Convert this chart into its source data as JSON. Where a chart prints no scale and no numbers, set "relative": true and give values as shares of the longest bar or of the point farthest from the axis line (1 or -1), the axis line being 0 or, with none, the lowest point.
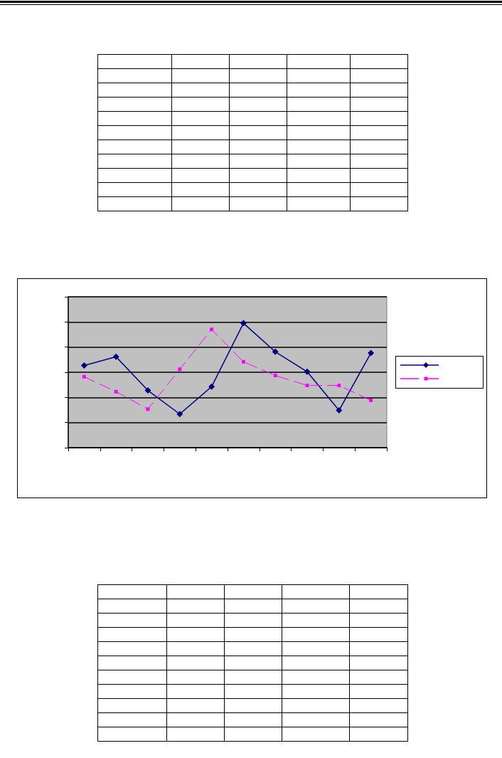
{
  "chart_data": {
    "type": "line",
    "relative": true,
    "grid": "y",
    "categories": [
      null,
      null,
      null,
      null,
      null,
      null,
      null,
      null,
      null,
      null
    ],
    "series": [
      {
        "color": "#000080",
        "marker": "diamond",
        "line_style": "solid",
        "values": [
          0.66,
          0.73,
          0.46,
          0.27,
          0.49,
          1,
          0.77,
          0.61,
          0.3,
          0.76
        ]
      },
      {
        "color": "#ff00ff",
        "marker": "square",
        "line_style": "dashed",
        "values": [
          0.57,
          0.45,
          0.31,
          0.63,
          0.95,
          0.69,
          0.58,
          0.5,
          0.5,
          0.38
        ]
      }
    ]
  }
}
